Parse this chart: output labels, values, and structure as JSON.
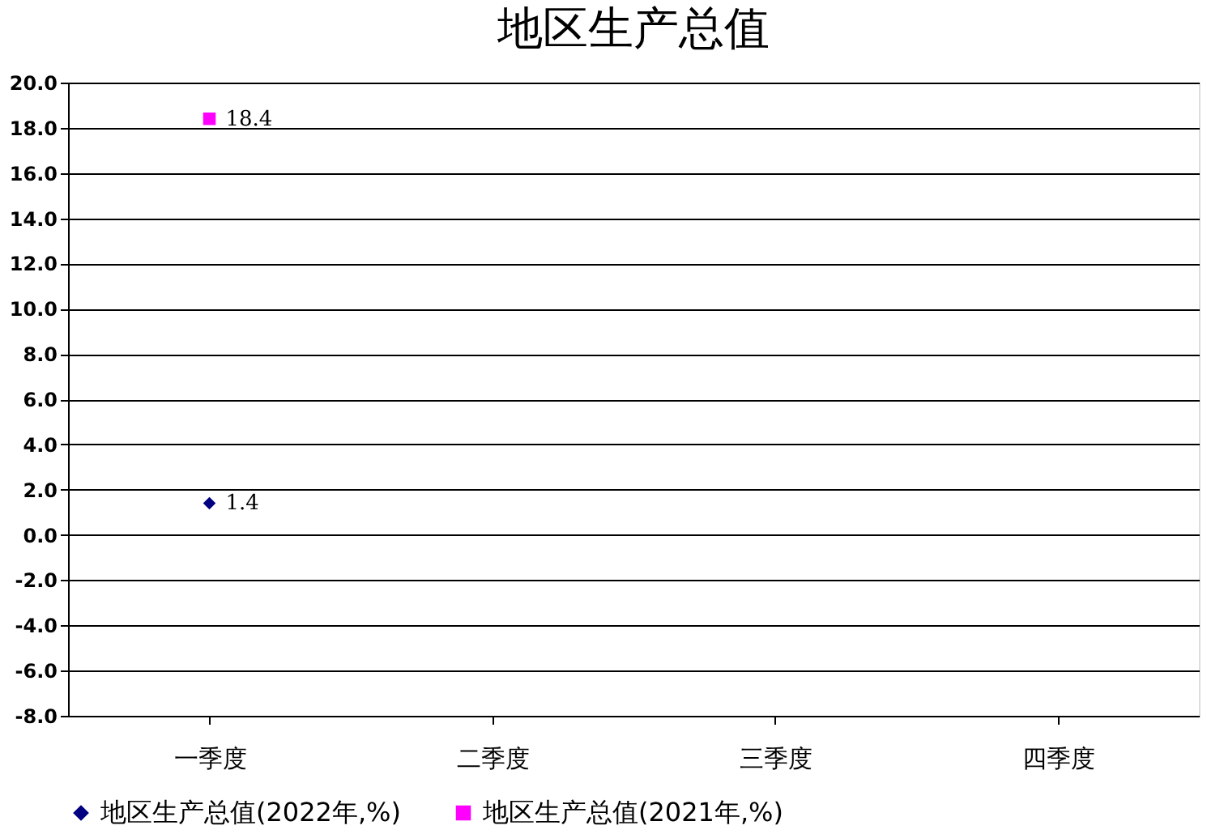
{
  "chart_data": {
    "type": "line",
    "title": "地区生产总值",
    "categories": [
      "一季度",
      "二季度",
      "三季度",
      "四季度"
    ],
    "series": [
      {
        "name": "地区生产总值(2022年,%)",
        "color": "#000080",
        "marker": "diamond",
        "values": [
          1.4,
          null,
          null,
          null
        ]
      },
      {
        "name": "地区生产总值(2021年,%)",
        "color": "#ff00ff",
        "marker": "square",
        "values": [
          18.4,
          null,
          null,
          null
        ]
      }
    ],
    "ylim": [
      -8,
      20
    ],
    "yticks": [
      {
        "value": -8,
        "label": "-8.0"
      },
      {
        "value": -6,
        "label": "-6.0"
      },
      {
        "value": -4,
        "label": "-4.0"
      },
      {
        "value": -2,
        "label": "-2.0"
      },
      {
        "value": 0,
        "label": "0.0"
      },
      {
        "value": 2,
        "label": "2.0"
      },
      {
        "value": 4,
        "label": "4.0"
      },
      {
        "value": 6,
        "label": "6.0"
      },
      {
        "value": 8,
        "label": "8.0"
      },
      {
        "value": 10,
        "label": "10.0"
      },
      {
        "value": 12,
        "label": "12.0"
      },
      {
        "value": 14,
        "label": "14.0"
      },
      {
        "value": 16,
        "label": "16.0"
      },
      {
        "value": 18,
        "label": "18.0"
      },
      {
        "value": 20,
        "label": "20.0"
      }
    ],
    "grid": "y",
    "legend": "bottom",
    "data_labels": true
  }
}
